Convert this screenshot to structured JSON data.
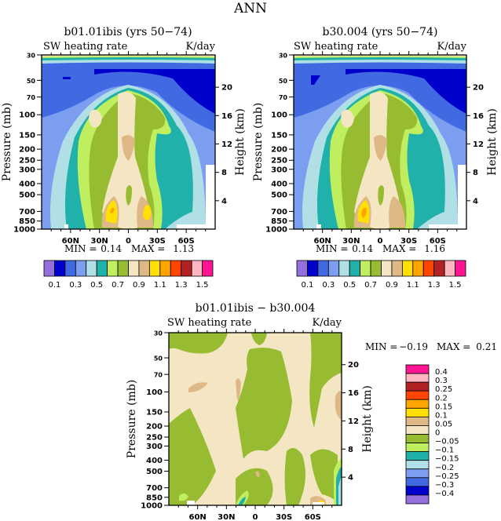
{
  "page_title": "ANN",
  "colors": {
    "scale": [
      "#9370DB",
      "#0000CD",
      "#4169E1",
      "#7B9EF0",
      "#B0E0E6",
      "#20B2AA",
      "#BFEF5F",
      "#97BC32",
      "#F5E6C3",
      "#DEB887",
      "#FFE000",
      "#FFA500",
      "#FF4500",
      "#B22222",
      "#FFB6C1",
      "#FF1493"
    ]
  },
  "chart_data": [
    {
      "type": "heatmap",
      "title": "b01.01ibis (yrs 50−74)",
      "subtitle_left": "SW heating rate",
      "subtitle_right": "K/day",
      "ylabel": "Pressure (mb)",
      "ylabel_right": "Height (km)",
      "yticks": [
        "30",
        "50",
        "70",
        "100",
        "150",
        "200",
        "250",
        "300",
        "400",
        "500",
        "700",
        "850",
        "1000"
      ],
      "yticks_right": [
        "20",
        "16",
        "12",
        "8",
        "4"
      ],
      "xticks": [
        "60N",
        "30N",
        "0",
        "30S",
        "60S"
      ],
      "min_label": "MIN =",
      "min_value": "0.14",
      "max_label": "MAX =",
      "max_value": "1.13",
      "colorbar_labels": [
        "0.1",
        "0.3",
        "0.5",
        "0.7",
        "0.9",
        "1.1",
        "1.3",
        "1.5"
      ]
    },
    {
      "type": "heatmap",
      "title": "b30.004 (yrs 50−74)",
      "subtitle_left": "SW heating rate",
      "subtitle_right": "K/day",
      "ylabel": "Pressure (mb)",
      "ylabel_right": "Height (km)",
      "yticks": [
        "30",
        "50",
        "70",
        "100",
        "150",
        "200",
        "250",
        "300",
        "400",
        "500",
        "700",
        "850",
        "1000"
      ],
      "yticks_right": [
        "20",
        "16",
        "12",
        "8",
        "4"
      ],
      "xticks": [
        "60N",
        "30N",
        "0",
        "30S",
        "60S"
      ],
      "min_label": "MIN =",
      "min_value": "0.14",
      "max_label": "MAX =",
      "max_value": "1.16",
      "colorbar_labels": [
        "0.1",
        "0.3",
        "0.5",
        "0.7",
        "0.9",
        "1.1",
        "1.3",
        "1.5"
      ]
    },
    {
      "type": "heatmap",
      "title": "b01.01ibis − b30.004",
      "subtitle_left": "SW heating rate",
      "subtitle_right": "K/day",
      "ylabel": "Pressure (mb)",
      "ylabel_right": "Height (km)",
      "yticks": [
        "30",
        "50",
        "70",
        "100",
        "150",
        "200",
        "250",
        "300",
        "400",
        "500",
        "700",
        "850",
        "1000"
      ],
      "yticks_right": [
        "20",
        "16",
        "12",
        "8",
        "4"
      ],
      "xticks": [
        "60N",
        "30N",
        "0",
        "30S",
        "60S"
      ],
      "min_label": "MIN =",
      "min_value": "−0.19",
      "max_label": "MAX =",
      "max_value": "0.21",
      "colorbar_labels": [
        "0.4",
        "0.3",
        "0.25",
        "0.2",
        "0.15",
        "0.1",
        "0.05",
        "0",
        "−0.05",
        "−0.1",
        "−0.15",
        "−0.2",
        "−0.25",
        "−0.3",
        "−0.4"
      ]
    }
  ]
}
